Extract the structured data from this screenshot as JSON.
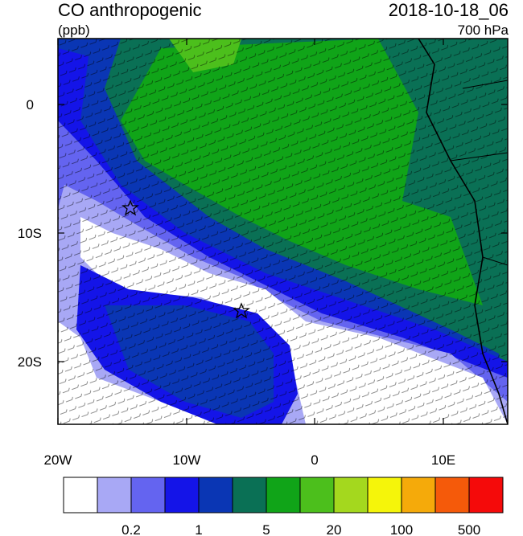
{
  "title": {
    "variable": "CO anthropogenic",
    "units": "(ppb)",
    "datetime": "2018-10-18_06",
    "level": "700 hPa"
  },
  "axes": {
    "x_ticks": [
      "20W",
      "10W",
      "0",
      "10E"
    ],
    "y_ticks": [
      "0",
      "10S",
      "20S"
    ]
  },
  "colorbar": {
    "colors": [
      "#ffffff",
      "#a8a8f5",
      "#6464f0",
      "#1414e8",
      "#0a36b4",
      "#0a7055",
      "#10a418",
      "#4cbf1c",
      "#a4d81e",
      "#f5f50a",
      "#f5aa0a",
      "#f55a0a",
      "#f50a0a"
    ],
    "labels": [
      "0.2",
      "1",
      "5",
      "20",
      "100",
      "500"
    ]
  },
  "markers": [
    {
      "name": "star-marker-north",
      "symbol": "star"
    },
    {
      "name": "star-marker-south",
      "symbol": "star"
    }
  ]
}
